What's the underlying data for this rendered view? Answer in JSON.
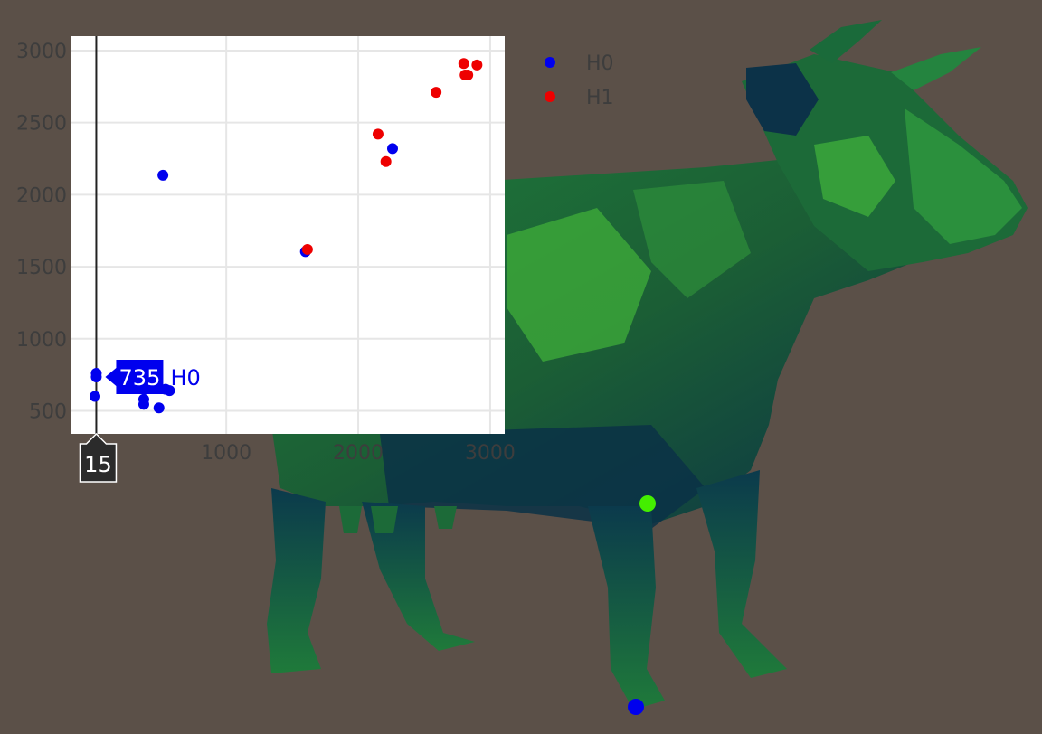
{
  "colors": {
    "background": "#5b5048",
    "plot_bg": "#ffffff",
    "grid": "#e6e6e6",
    "tick_text": "#3d3d3d",
    "H0": "#0000ee",
    "H1": "#ee0000",
    "mesh_dark": "#06264a",
    "mesh_mid": "#1e6b34",
    "mesh_light": "#4fc23a",
    "marker_green": "#44ee00"
  },
  "scene": {
    "object": "low-poly cow mesh",
    "markers": [
      {
        "name": "green-vertex-marker",
        "color": "#44ee00"
      },
      {
        "name": "blue-vertex-marker",
        "color": "#0000ee"
      }
    ]
  },
  "chart_data": {
    "type": "scatter",
    "title": "",
    "xlabel": "",
    "ylabel": "",
    "xlim": [
      -180,
      3110
    ],
    "ylim": [
      340,
      3100
    ],
    "xticks": [
      1000,
      2000,
      3000
    ],
    "xtick_labels": [
      "1000",
      "2000",
      "3000"
    ],
    "yticks": [
      500,
      1000,
      1500,
      2000,
      2500,
      3000
    ],
    "ytick_labels": [
      "500",
      "1000",
      "1500",
      "2000",
      "2500",
      "3000"
    ],
    "grid": true,
    "legend": {
      "position": "right",
      "entries": [
        "H0",
        "H1"
      ]
    },
    "series": [
      {
        "name": "H0",
        "color": "#0000ee",
        "points": [
          [
            15,
            760
          ],
          [
            15,
            735
          ],
          [
            5,
            600
          ],
          [
            375,
            580
          ],
          [
            375,
            545
          ],
          [
            490,
            520
          ],
          [
            540,
            650
          ],
          [
            570,
            640
          ],
          [
            520,
            2135
          ],
          [
            1600,
            1605
          ],
          [
            2260,
            2320
          ]
        ]
      },
      {
        "name": "H1",
        "color": "#ee0000",
        "points": [
          [
            1615,
            1620
          ],
          [
            2150,
            2420
          ],
          [
            2210,
            2230
          ],
          [
            2590,
            2710
          ],
          [
            2800,
            2910
          ],
          [
            2810,
            2830
          ],
          [
            2830,
            2830
          ],
          [
            2900,
            2900
          ]
        ]
      }
    ],
    "hover": {
      "x_value": "15",
      "y_value": "735",
      "series_label": "H0"
    }
  }
}
